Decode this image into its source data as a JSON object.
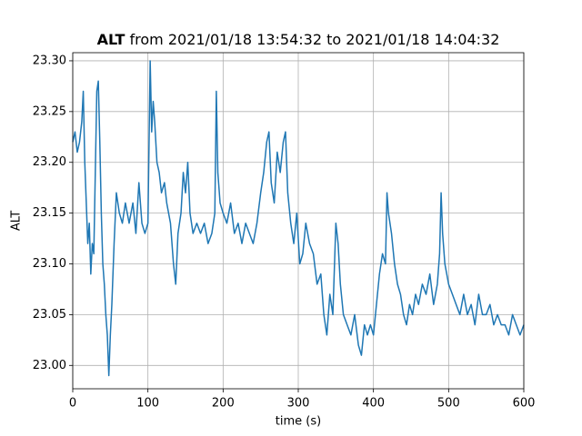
{
  "chart_data": {
    "type": "line",
    "title": [
      "ALT",
      "from 2021/01/18 13:54:32 to 2021/01/18 14:04:32"
    ],
    "x_label": "time (s)",
    "y_label": "ALT",
    "xlim": [
      0,
      600
    ],
    "ylim": [
      22.977,
      23.308
    ],
    "xticks": [
      0,
      100,
      200,
      300,
      400,
      500,
      600
    ],
    "yticks": [
      {
        "value": 23.0,
        "label": "23.00"
      },
      23.05,
      {
        "value": 23.1,
        "label": "23.10"
      },
      23.15,
      {
        "value": 23.2,
        "label": "23.20"
      },
      23.25,
      {
        "value": 23.3,
        "label": "23.30"
      }
    ],
    "grid": true,
    "series": [
      {
        "name": "ALT",
        "color": "#1f77b4",
        "x": [
          0,
          3,
          6,
          9,
          12,
          14,
          16,
          18,
          20,
          22,
          24,
          26,
          28,
          30,
          32,
          34,
          36,
          38,
          40,
          42,
          44,
          46,
          48,
          50,
          52,
          55,
          58,
          62,
          66,
          70,
          75,
          80,
          84,
          88,
          92,
          96,
          100,
          103,
          105,
          107,
          109,
          112,
          115,
          118,
          122,
          125,
          130,
          134,
          137,
          140,
          144,
          147,
          150,
          153,
          156,
          160,
          165,
          170,
          175,
          180,
          185,
          189,
          191,
          193,
          196,
          200,
          205,
          210,
          215,
          220,
          225,
          230,
          235,
          240,
          245,
          250,
          254,
          258,
          261,
          264,
          268,
          272,
          276,
          280,
          283,
          286,
          290,
          294,
          298,
          302,
          306,
          310,
          315,
          320,
          325,
          330,
          334,
          338,
          342,
          346,
          350,
          353,
          356,
          360,
          365,
          370,
          375,
          380,
          384,
          388,
          392,
          396,
          400,
          404,
          408,
          412,
          416,
          418,
          420,
          424,
          428,
          432,
          436,
          440,
          444,
          448,
          452,
          456,
          460,
          465,
          470,
          475,
          480,
          485,
          488,
          490,
          492,
          495,
          500,
          505,
          510,
          515,
          520,
          525,
          530,
          535,
          540,
          545,
          550,
          555,
          560,
          565,
          570,
          575,
          580,
          585,
          590,
          595,
          600
        ],
        "values": [
          23.22,
          23.23,
          23.21,
          23.22,
          23.24,
          23.27,
          23.2,
          23.16,
          23.12,
          23.14,
          23.09,
          23.12,
          23.11,
          23.19,
          23.27,
          23.28,
          23.22,
          23.15,
          23.1,
          23.08,
          23.05,
          23.03,
          22.99,
          23.03,
          23.06,
          23.12,
          23.17,
          23.15,
          23.14,
          23.16,
          23.14,
          23.16,
          23.13,
          23.18,
          23.14,
          23.13,
          23.14,
          23.3,
          23.23,
          23.26,
          23.24,
          23.2,
          23.19,
          23.17,
          23.18,
          23.16,
          23.14,
          23.1,
          23.08,
          23.13,
          23.15,
          23.19,
          23.17,
          23.2,
          23.15,
          23.13,
          23.14,
          23.13,
          23.14,
          23.12,
          23.13,
          23.15,
          23.27,
          23.19,
          23.16,
          23.15,
          23.14,
          23.16,
          23.13,
          23.14,
          23.12,
          23.14,
          23.13,
          23.12,
          23.14,
          23.17,
          23.19,
          23.22,
          23.23,
          23.18,
          23.16,
          23.21,
          23.19,
          23.22,
          23.23,
          23.17,
          23.14,
          23.12,
          23.15,
          23.1,
          23.11,
          23.14,
          23.12,
          23.11,
          23.08,
          23.09,
          23.05,
          23.03,
          23.07,
          23.05,
          23.14,
          23.12,
          23.08,
          23.05,
          23.04,
          23.03,
          23.05,
          23.02,
          23.01,
          23.04,
          23.03,
          23.04,
          23.03,
          23.06,
          23.09,
          23.11,
          23.1,
          23.17,
          23.15,
          23.13,
          23.1,
          23.08,
          23.07,
          23.05,
          23.04,
          23.06,
          23.05,
          23.07,
          23.06,
          23.08,
          23.07,
          23.09,
          23.06,
          23.08,
          23.11,
          23.17,
          23.13,
          23.1,
          23.08,
          23.07,
          23.06,
          23.05,
          23.07,
          23.05,
          23.06,
          23.04,
          23.07,
          23.05,
          23.05,
          23.06,
          23.04,
          23.05,
          23.04,
          23.04,
          23.03,
          23.05,
          23.04,
          23.03,
          23.04
        ]
      }
    ]
  }
}
